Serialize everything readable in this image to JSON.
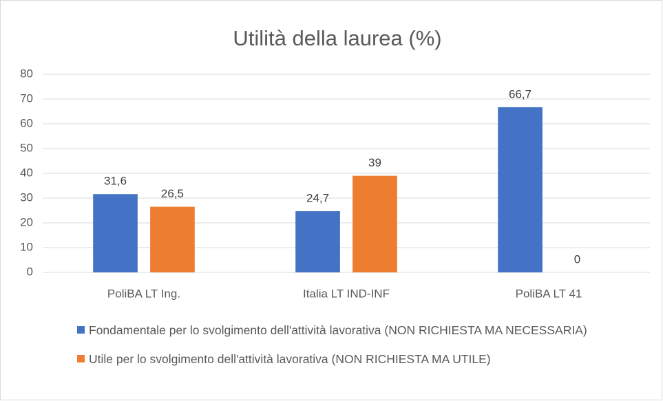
{
  "chart_data": {
    "type": "bar",
    "title": "Utilità della laurea (%)",
    "categories": [
      "PoliBA LT Ing.",
      "Italia LT IND-INF",
      "PoliBA LT 41"
    ],
    "series": [
      {
        "name": "Fondamentale per lo svolgimento dell'attività lavorativa (NON RICHIESTA MA NECESSARIA)",
        "color": "#4472c4",
        "values": [
          31.6,
          24.7,
          66.7
        ],
        "value_labels": [
          "31,6",
          "24,7",
          "66,7"
        ]
      },
      {
        "name": "Utile per lo svolgimento dell'attività lavorativa (NON RICHIESTA MA UTILE)",
        "color": "#ed7d31",
        "values": [
          26.5,
          39,
          0
        ],
        "value_labels": [
          "26,5",
          "39",
          "0"
        ]
      }
    ],
    "ylim": [
      0,
      80
    ],
    "yticks": [
      0,
      10,
      20,
      30,
      40,
      50,
      60,
      70,
      80
    ],
    "grid": true,
    "legend": "bottom"
  }
}
